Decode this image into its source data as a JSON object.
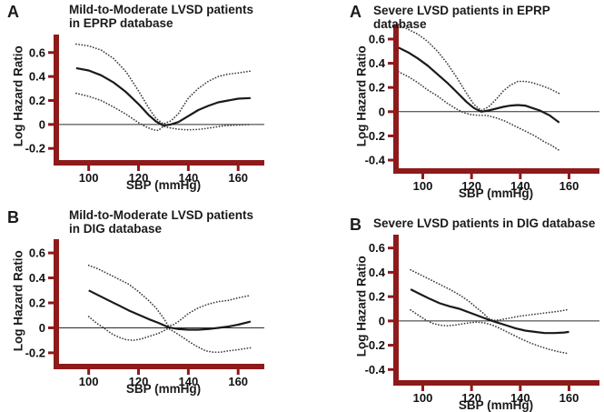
{
  "figure": {
    "background": "#ffffff",
    "ylabel": "Log Hazard Ratio",
    "xlabel": "SBP (mmHg)"
  },
  "colors": {
    "axis": "#8e1a1a",
    "curve": "#1a1a1a",
    "band": "#3c3c3c",
    "zero_line": "#2b2b2b",
    "text": "#111111",
    "background": "#ffffff"
  },
  "chart_data": [
    {
      "type": "line",
      "panel_label": "A",
      "title": "Mild-to-Moderate LVSD patients in EPRP database",
      "title_line1": "Mild-to-Moderate LVSD patients",
      "title_line2": "in EPRP database",
      "xlabel": "SBP (mmHg)",
      "ylabel": "Log Hazard Ratio",
      "xlim": [
        87,
        170.5
      ],
      "ylim": [
        -0.32,
        0.75
      ],
      "xticks": [
        100,
        120,
        140,
        160
      ],
      "yticks": [
        0.6,
        0.4,
        0.2,
        0,
        -0.2
      ],
      "legend": "none",
      "grid": false,
      "series": [
        {
          "name": "upper-95ci",
          "style": "dotted",
          "points": [
            [
              95,
              0.67
            ],
            [
              100,
              0.655
            ],
            [
              105,
              0.62
            ],
            [
              110,
              0.55
            ],
            [
              115,
              0.44
            ],
            [
              120,
              0.28
            ],
            [
              124,
              0.14
            ],
            [
              127,
              0.05
            ],
            [
              130,
              0.005
            ],
            [
              133,
              0.03
            ],
            [
              136,
              0.09
            ],
            [
              140,
              0.22
            ],
            [
              144,
              0.3
            ],
            [
              148,
              0.36
            ],
            [
              152,
              0.4
            ],
            [
              156,
              0.42
            ],
            [
              160,
              0.43
            ],
            [
              165,
              0.445
            ]
          ]
        },
        {
          "name": "estimate",
          "style": "solid",
          "points": [
            [
              95,
              0.47
            ],
            [
              100,
              0.45
            ],
            [
              105,
              0.41
            ],
            [
              110,
              0.35
            ],
            [
              115,
              0.27
            ],
            [
              120,
              0.17
            ],
            [
              124,
              0.08
            ],
            [
              127,
              0.025
            ],
            [
              130,
              -0.01
            ],
            [
              133,
              0.0
            ],
            [
              136,
              0.02
            ],
            [
              140,
              0.07
            ],
            [
              144,
              0.12
            ],
            [
              148,
              0.155
            ],
            [
              152,
              0.185
            ],
            [
              156,
              0.2
            ],
            [
              160,
              0.215
            ],
            [
              165,
              0.22
            ]
          ]
        },
        {
          "name": "lower-95ci",
          "style": "dotted",
          "points": [
            [
              95,
              0.26
            ],
            [
              100,
              0.235
            ],
            [
              105,
              0.2
            ],
            [
              110,
              0.145
            ],
            [
              115,
              0.085
            ],
            [
              120,
              0.015
            ],
            [
              123,
              -0.02
            ],
            [
              126,
              -0.045
            ],
            [
              128,
              -0.05
            ],
            [
              130,
              -0.015
            ],
            [
              133,
              -0.03
            ],
            [
              136,
              -0.04
            ],
            [
              140,
              -0.045
            ],
            [
              145,
              -0.04
            ],
            [
              150,
              -0.025
            ],
            [
              155,
              -0.01
            ],
            [
              160,
              -0.005
            ],
            [
              165,
              0.0
            ]
          ]
        }
      ]
    },
    {
      "type": "line",
      "panel_label": "A",
      "title": "Severe LVSD patients in EPRP database",
      "title_line1": "Severe LVSD patients in EPRP database",
      "title_line2": "",
      "xlabel": "SBP (mmHg)",
      "ylabel": "Log Hazard Ratio",
      "xlim": [
        89,
        172.5
      ],
      "ylim": [
        -0.49,
        0.72
      ],
      "xticks": [
        100,
        120,
        140,
        160
      ],
      "yticks": [
        0.6,
        0.4,
        0.2,
        0,
        -0.2,
        -0.4
      ],
      "legend": "none",
      "grid": false,
      "series": [
        {
          "name": "upper-95ci",
          "style": "dotted",
          "points": [
            [
              90,
              0.72
            ],
            [
              94,
              0.68
            ],
            [
              98,
              0.64
            ],
            [
              102,
              0.58
            ],
            [
              106,
              0.5
            ],
            [
              110,
              0.4
            ],
            [
              114,
              0.28
            ],
            [
              118,
              0.15
            ],
            [
              121,
              0.06
            ],
            [
              124,
              0.01
            ],
            [
              127,
              0.04
            ],
            [
              130,
              0.1
            ],
            [
              133,
              0.17
            ],
            [
              136,
              0.22
            ],
            [
              139,
              0.25
            ],
            [
              142,
              0.25
            ],
            [
              145,
              0.24
            ],
            [
              148,
              0.22
            ],
            [
              152,
              0.19
            ],
            [
              156,
              0.15
            ]
          ]
        },
        {
          "name": "estimate",
          "style": "solid",
          "points": [
            [
              90,
              0.53
            ],
            [
              94,
              0.49
            ],
            [
              98,
              0.44
            ],
            [
              102,
              0.38
            ],
            [
              106,
              0.31
            ],
            [
              110,
              0.24
            ],
            [
              114,
              0.16
            ],
            [
              118,
              0.08
            ],
            [
              121,
              0.03
            ],
            [
              124,
              0.0
            ],
            [
              127,
              0.01
            ],
            [
              130,
              0.025
            ],
            [
              133,
              0.04
            ],
            [
              136,
              0.05
            ],
            [
              139,
              0.055
            ],
            [
              142,
              0.05
            ],
            [
              145,
              0.03
            ],
            [
              148,
              0.01
            ],
            [
              152,
              -0.03
            ],
            [
              156,
              -0.09
            ]
          ]
        },
        {
          "name": "lower-95ci",
          "style": "dotted",
          "points": [
            [
              90,
              0.33
            ],
            [
              94,
              0.29
            ],
            [
              98,
              0.24
            ],
            [
              102,
              0.18
            ],
            [
              106,
              0.13
            ],
            [
              110,
              0.07
            ],
            [
              114,
              0.02
            ],
            [
              117,
              -0.01
            ],
            [
              120,
              -0.025
            ],
            [
              123,
              -0.03
            ],
            [
              126,
              -0.03
            ],
            [
              130,
              -0.05
            ],
            [
              134,
              -0.08
            ],
            [
              138,
              -0.12
            ],
            [
              142,
              -0.16
            ],
            [
              146,
              -0.2
            ],
            [
              150,
              -0.25
            ],
            [
              153,
              -0.28
            ],
            [
              156,
              -0.32
            ]
          ]
        }
      ]
    },
    {
      "type": "line",
      "panel_label": "B",
      "title": "Mild-to-Moderate LVSD patients in DIG database",
      "title_line1": "Mild-to-Moderate LVSD patients",
      "title_line2": "in DIG database",
      "xlabel": "SBP (mmHg)",
      "ylabel": "Log Hazard Ratio",
      "xlim": [
        87,
        170.5
      ],
      "ylim": [
        -0.31,
        0.71
      ],
      "xticks": [
        100,
        120,
        140,
        160
      ],
      "yticks": [
        0.6,
        0.4,
        0.2,
        0,
        -0.2
      ],
      "legend": "none",
      "grid": false,
      "series": [
        {
          "name": "upper-95ci",
          "style": "dotted",
          "points": [
            [
              100,
              0.5
            ],
            [
              104,
              0.47
            ],
            [
              108,
              0.43
            ],
            [
              112,
              0.39
            ],
            [
              116,
              0.35
            ],
            [
              120,
              0.29
            ],
            [
              124,
              0.22
            ],
            [
              127,
              0.16
            ],
            [
              130,
              0.08
            ],
            [
              132,
              0.015
            ],
            [
              134,
              0.025
            ],
            [
              136,
              0.05
            ],
            [
              140,
              0.115
            ],
            [
              144,
              0.16
            ],
            [
              148,
              0.19
            ],
            [
              152,
              0.21
            ],
            [
              156,
              0.22
            ],
            [
              160,
              0.24
            ],
            [
              165,
              0.26
            ]
          ]
        },
        {
          "name": "estimate",
          "style": "solid",
          "points": [
            [
              100,
              0.3
            ],
            [
              104,
              0.26
            ],
            [
              108,
              0.22
            ],
            [
              112,
              0.18
            ],
            [
              116,
              0.14
            ],
            [
              120,
              0.105
            ],
            [
              124,
              0.07
            ],
            [
              128,
              0.04
            ],
            [
              132,
              0.005
            ],
            [
              136,
              -0.01
            ],
            [
              140,
              -0.015
            ],
            [
              144,
              -0.015
            ],
            [
              148,
              -0.01
            ],
            [
              152,
              0.0
            ],
            [
              156,
              0.01
            ],
            [
              160,
              0.025
            ],
            [
              165,
              0.05
            ]
          ]
        },
        {
          "name": "lower-95ci",
          "style": "dotted",
          "points": [
            [
              100,
              0.09
            ],
            [
              103,
              0.04
            ],
            [
              106,
              0.0
            ],
            [
              109,
              -0.045
            ],
            [
              112,
              -0.075
            ],
            [
              115,
              -0.095
            ],
            [
              118,
              -0.1
            ],
            [
              121,
              -0.09
            ],
            [
              124,
              -0.07
            ],
            [
              128,
              -0.045
            ],
            [
              132,
              -0.005
            ],
            [
              135,
              -0.04
            ],
            [
              138,
              -0.08
            ],
            [
              141,
              -0.12
            ],
            [
              144,
              -0.155
            ],
            [
              147,
              -0.185
            ],
            [
              150,
              -0.195
            ],
            [
              153,
              -0.195
            ],
            [
              156,
              -0.185
            ],
            [
              160,
              -0.175
            ],
            [
              165,
              -0.16
            ]
          ]
        }
      ]
    },
    {
      "type": "line",
      "panel_label": "B",
      "title": "Severe LVSD patients in DIG database",
      "title_line1": "Severe LVSD patients in DIG database",
      "title_line2": "",
      "xlabel": "SBP (mmHg)",
      "ylabel": "Log Hazard Ratio",
      "xlim": [
        89,
        172.5
      ],
      "ylim": [
        -0.51,
        0.71
      ],
      "xticks": [
        100,
        120,
        140,
        160
      ],
      "yticks": [
        0.6,
        0.4,
        0.2,
        0,
        -0.2,
        -0.4
      ],
      "legend": "none",
      "grid": false,
      "series": [
        {
          "name": "upper-95ci",
          "style": "dotted",
          "points": [
            [
              95,
              0.42
            ],
            [
              99,
              0.38
            ],
            [
              103,
              0.34
            ],
            [
              107,
              0.3
            ],
            [
              111,
              0.26
            ],
            [
              115,
              0.215
            ],
            [
              119,
              0.16
            ],
            [
              122,
              0.11
            ],
            [
              125,
              0.06
            ],
            [
              127,
              0.02
            ],
            [
              129,
              0.005
            ],
            [
              132,
              0.01
            ],
            [
              136,
              0.025
            ],
            [
              140,
              0.04
            ],
            [
              144,
              0.05
            ],
            [
              148,
              0.06
            ],
            [
              152,
              0.07
            ],
            [
              156,
              0.08
            ],
            [
              160,
              0.095
            ]
          ]
        },
        {
          "name": "estimate",
          "style": "solid",
          "points": [
            [
              95,
              0.26
            ],
            [
              99,
              0.22
            ],
            [
              103,
              0.18
            ],
            [
              107,
              0.145
            ],
            [
              111,
              0.12
            ],
            [
              115,
              0.1
            ],
            [
              119,
              0.07
            ],
            [
              123,
              0.04
            ],
            [
              127,
              0.01
            ],
            [
              130,
              -0.01
            ],
            [
              134,
              -0.035
            ],
            [
              138,
              -0.06
            ],
            [
              142,
              -0.08
            ],
            [
              146,
              -0.09
            ],
            [
              150,
              -0.1
            ],
            [
              154,
              -0.1
            ],
            [
              158,
              -0.095
            ],
            [
              160,
              -0.09
            ]
          ]
        },
        {
          "name": "lower-95ci",
          "style": "dotted",
          "points": [
            [
              95,
              0.09
            ],
            [
              98,
              0.05
            ],
            [
              101,
              0.01
            ],
            [
              104,
              -0.02
            ],
            [
              107,
              -0.035
            ],
            [
              110,
              -0.04
            ],
            [
              113,
              -0.035
            ],
            [
              116,
              -0.025
            ],
            [
              119,
              -0.015
            ],
            [
              122,
              -0.01
            ],
            [
              125,
              -0.015
            ],
            [
              128,
              -0.03
            ],
            [
              131,
              -0.055
            ],
            [
              134,
              -0.085
            ],
            [
              137,
              -0.115
            ],
            [
              140,
              -0.145
            ],
            [
              144,
              -0.18
            ],
            [
              148,
              -0.21
            ],
            [
              152,
              -0.235
            ],
            [
              156,
              -0.255
            ],
            [
              160,
              -0.27
            ]
          ]
        }
      ]
    }
  ]
}
